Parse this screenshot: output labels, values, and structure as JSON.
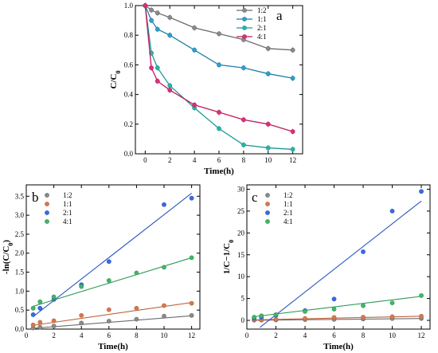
{
  "chart_data": [
    {
      "panel": "a",
      "type": "line",
      "xlabel": "Time(h)",
      "ylabel_main": "C/C",
      "ylabel_sub": "0",
      "xlim": [
        -0.8,
        12.8
      ],
      "ylim": [
        0,
        1.0
      ],
      "xticks": [
        0,
        2,
        4,
        6,
        8,
        10,
        12
      ],
      "yticks": [
        0.0,
        0.2,
        0.4,
        0.6,
        0.8,
        1.0
      ],
      "ytick_format": 1,
      "legend_position": "top-right",
      "series": [
        {
          "name": "1:2",
          "color": "#6d6d6d",
          "marker": "#8a8a8a",
          "x": [
            0,
            0.5,
            1,
            2,
            4,
            6,
            8,
            10,
            12
          ],
          "y": [
            1.0,
            0.97,
            0.95,
            0.92,
            0.85,
            0.81,
            0.77,
            0.71,
            0.7
          ]
        },
        {
          "name": "1:1",
          "color": "#1f7fa8",
          "marker": "#2f9ed0",
          "x": [
            0,
            0.5,
            1,
            2,
            4,
            6,
            8,
            10,
            12
          ],
          "y": [
            1.0,
            0.9,
            0.84,
            0.8,
            0.7,
            0.6,
            0.58,
            0.54,
            0.51
          ]
        },
        {
          "name": "2:1",
          "color": "#1a9a98",
          "marker": "#27b3a8",
          "x": [
            0,
            0.5,
            1,
            2,
            4,
            6,
            8,
            10,
            12
          ],
          "y": [
            1.0,
            0.68,
            0.58,
            0.46,
            0.31,
            0.17,
            0.06,
            0.04,
            0.03
          ]
        },
        {
          "name": "4:1",
          "color": "#c2185b",
          "marker": "#d6337a",
          "x": [
            0,
            0.5,
            1,
            2,
            4,
            6,
            8,
            10,
            12
          ],
          "y": [
            1.0,
            0.58,
            0.49,
            0.43,
            0.33,
            0.28,
            0.23,
            0.2,
            0.15
          ]
        }
      ]
    },
    {
      "panel": "b",
      "type": "scatter",
      "xlabel": "Time(h)",
      "ylabel_main": "-ln(C/C",
      "ylabel_sub": "0",
      "ylabel_end": ")",
      "xlim": [
        0,
        12.6
      ],
      "ylim": [
        0,
        3.8
      ],
      "xticks": [
        0,
        2,
        4,
        6,
        8,
        10,
        12
      ],
      "yticks": [
        0.0,
        0.5,
        1.0,
        1.5,
        2.0,
        2.5,
        3.0,
        3.5
      ],
      "ytick_format": 1,
      "legend_position": "top-left",
      "series": [
        {
          "name": "1:2",
          "color": "#6d6d6d",
          "marker": "#8a8a8a",
          "x": [
            0.5,
            1,
            2,
            4,
            6,
            8,
            10,
            12
          ],
          "y": [
            0.03,
            0.05,
            0.08,
            0.16,
            0.21,
            0.26,
            0.34,
            0.36
          ],
          "fit": [
            [
              0.5,
              0.02
            ],
            [
              12,
              0.35
            ]
          ]
        },
        {
          "name": "1:1",
          "color": "#c0623a",
          "marker": "#d47a4e",
          "x": [
            0.5,
            1,
            2,
            4,
            6,
            8,
            10,
            12
          ],
          "y": [
            0.11,
            0.18,
            0.22,
            0.36,
            0.51,
            0.55,
            0.62,
            0.68
          ],
          "fit": [
            [
              0.5,
              0.1
            ],
            [
              12,
              0.7
            ]
          ]
        },
        {
          "name": "2:1",
          "color": "#2a55c4",
          "marker": "#3a6be0",
          "x": [
            0.5,
            1,
            2,
            4,
            6,
            10,
            12
          ],
          "y": [
            0.38,
            0.55,
            0.78,
            1.17,
            1.78,
            3.28,
            3.45
          ],
          "fit": [
            [
              0.5,
              0.33
            ],
            [
              12,
              3.58
            ]
          ]
        },
        {
          "name": "4:1",
          "color": "#2e9a55",
          "marker": "#46b36a",
          "x": [
            0.5,
            1,
            2,
            4,
            6,
            8,
            10,
            12
          ],
          "y": [
            0.55,
            0.72,
            0.85,
            1.12,
            1.28,
            1.48,
            1.63,
            1.88
          ],
          "fit": [
            [
              0.5,
              0.6
            ],
            [
              12,
              1.88
            ]
          ]
        }
      ]
    },
    {
      "panel": "c",
      "type": "scatter",
      "xlabel": "Time(h)",
      "ylabel_main": "1/C−1/C",
      "ylabel_sub": "0",
      "ylabel_end": "",
      "xlim": [
        0,
        12.6
      ],
      "ylim": [
        -2,
        31
      ],
      "xticks": [
        0,
        2,
        4,
        6,
        8,
        10,
        12
      ],
      "yticks": [
        0,
        5,
        10,
        15,
        20,
        25,
        30
      ],
      "ytick_format": 0,
      "legend_position": "top-left",
      "series": [
        {
          "name": "1:2",
          "color": "#6d6d6d",
          "marker": "#8a8a8a",
          "x": [
            0.5,
            1,
            2,
            4,
            6,
            8,
            10,
            12
          ],
          "y": [
            0.03,
            0.05,
            0.09,
            0.18,
            0.23,
            0.3,
            0.41,
            0.43
          ],
          "fit": [
            [
              0.5,
              0.02
            ],
            [
              12,
              0.42
            ]
          ]
        },
        {
          "name": "1:1",
          "color": "#c0623a",
          "marker": "#d47a4e",
          "x": [
            0.5,
            1,
            2,
            4,
            6,
            8,
            10,
            12
          ],
          "y": [
            0.11,
            0.19,
            0.25,
            0.43,
            0.67,
            0.72,
            0.85,
            0.96
          ],
          "fit": [
            [
              0.5,
              0.1
            ],
            [
              12,
              0.95
            ]
          ]
        },
        {
          "name": "2:1",
          "color": "#2a55c4",
          "marker": "#3a6be0",
          "x": [
            0.5,
            1,
            2,
            4,
            6,
            8,
            10,
            12
          ],
          "y": [
            0.47,
            0.72,
            1.17,
            2.23,
            4.88,
            15.7,
            25.0,
            29.5
          ],
          "fit": [
            [
              0.9,
              -1.6
            ],
            [
              12,
              27.3
            ]
          ]
        },
        {
          "name": "4:1",
          "color": "#2e9a55",
          "marker": "#46b36a",
          "x": [
            0.5,
            1,
            2,
            4,
            6,
            8,
            10,
            12
          ],
          "y": [
            0.72,
            1.04,
            1.33,
            2.03,
            2.57,
            3.35,
            4.0,
            5.67
          ],
          "fit": [
            [
              0.5,
              0.85
            ],
            [
              12,
              5.5
            ]
          ]
        }
      ]
    }
  ]
}
